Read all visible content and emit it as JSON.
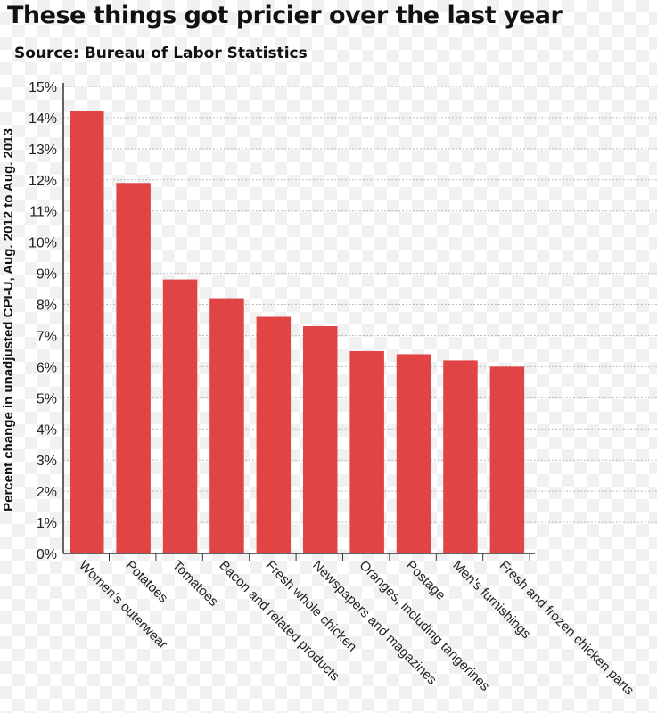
{
  "chart_data": {
    "type": "bar",
    "title": "These things got pricier over the last year",
    "subtitle": "Source: Bureau of Labor Statistics",
    "xlabel": "",
    "ylabel": "Percent change in unadjusted CPI-U, Aug. 2012 to Aug. 2013",
    "ylim": [
      0,
      15
    ],
    "yticks": [
      "0%",
      "1%",
      "2%",
      "3%",
      "4%",
      "5%",
      "6%",
      "7%",
      "8%",
      "9%",
      "10%",
      "11%",
      "12%",
      "13%",
      "14%",
      "15%"
    ],
    "grid": true,
    "categories": [
      "Women's outerwear",
      "Potatoes",
      "Tomatoes",
      "Bacon and related products",
      "Fresh whole chicken",
      "Newspapers and magazines",
      "Oranges, including tangerines",
      "Postage",
      "Men's furnishings",
      "Fresh and frozen chicken parts"
    ],
    "values": [
      14.2,
      11.9,
      8.8,
      8.2,
      7.6,
      7.3,
      6.5,
      6.4,
      6.2,
      6.0
    ],
    "bar_color": "#e04444"
  }
}
